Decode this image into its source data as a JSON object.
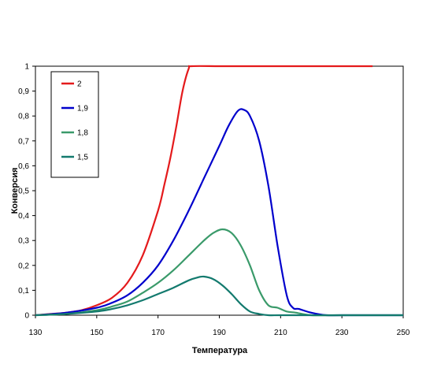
{
  "chart_data": {
    "type": "line",
    "title": "",
    "xlabel": "Температура",
    "ylabel": "Конверсия",
    "xlim": [
      130,
      250
    ],
    "ylim": [
      0,
      1
    ],
    "xticks": [
      "130",
      "150",
      "170",
      "190",
      "210",
      "230",
      "250"
    ],
    "yticks": [
      "0",
      "0,1",
      "0,2",
      "0,3",
      "0,4",
      "0,5",
      "0,6",
      "0,7",
      "0,8",
      "0,9",
      "1"
    ],
    "grid": false,
    "legend_position": "top-left",
    "series": [
      {
        "name": "2",
        "color": "#e41a1c",
        "x": [
          130,
          135,
          140,
          145,
          150,
          155,
          160,
          165,
          170,
          172,
          174,
          176,
          178,
          180,
          181,
          190,
          200,
          210,
          220,
          230,
          240
        ],
        "y": [
          0.0,
          0.005,
          0.01,
          0.02,
          0.04,
          0.07,
          0.13,
          0.24,
          0.42,
          0.52,
          0.63,
          0.76,
          0.9,
          0.99,
          1.0,
          1.0,
          1.0,
          1.0,
          1.0,
          1.0,
          1.0
        ]
      },
      {
        "name": "1,9",
        "color": "#0000cc",
        "x": [
          130,
          140,
          150,
          155,
          160,
          165,
          170,
          175,
          180,
          185,
          190,
          193,
          196,
          198,
          200,
          203,
          206,
          209,
          212,
          214,
          216,
          220,
          225,
          230,
          250
        ],
        "y": [
          0.0,
          0.01,
          0.03,
          0.05,
          0.08,
          0.13,
          0.2,
          0.3,
          0.42,
          0.55,
          0.68,
          0.76,
          0.82,
          0.825,
          0.8,
          0.7,
          0.52,
          0.28,
          0.08,
          0.03,
          0.025,
          0.01,
          0.0,
          0.0,
          0.0
        ]
      },
      {
        "name": "1,8",
        "color": "#3a9a6a",
        "x": [
          130,
          140,
          150,
          155,
          160,
          165,
          170,
          175,
          180,
          185,
          188,
          191,
          194,
          197,
          200,
          203,
          206,
          209,
          212,
          215,
          220,
          230,
          250
        ],
        "y": [
          0.0,
          0.005,
          0.02,
          0.035,
          0.055,
          0.09,
          0.13,
          0.18,
          0.24,
          0.3,
          0.33,
          0.345,
          0.33,
          0.28,
          0.2,
          0.1,
          0.04,
          0.03,
          0.015,
          0.01,
          0.0,
          0.0,
          0.0
        ]
      },
      {
        "name": "1,5",
        "color": "#137a6e",
        "x": [
          130,
          140,
          150,
          155,
          160,
          165,
          170,
          175,
          180,
          183,
          185,
          188,
          191,
          194,
          197,
          200,
          203,
          206,
          210,
          220,
          250
        ],
        "y": [
          0.0,
          0.005,
          0.015,
          0.025,
          0.04,
          0.06,
          0.085,
          0.11,
          0.14,
          0.152,
          0.155,
          0.145,
          0.12,
          0.085,
          0.045,
          0.015,
          0.005,
          0.0,
          0.0,
          0.0,
          0.0
        ]
      }
    ]
  }
}
